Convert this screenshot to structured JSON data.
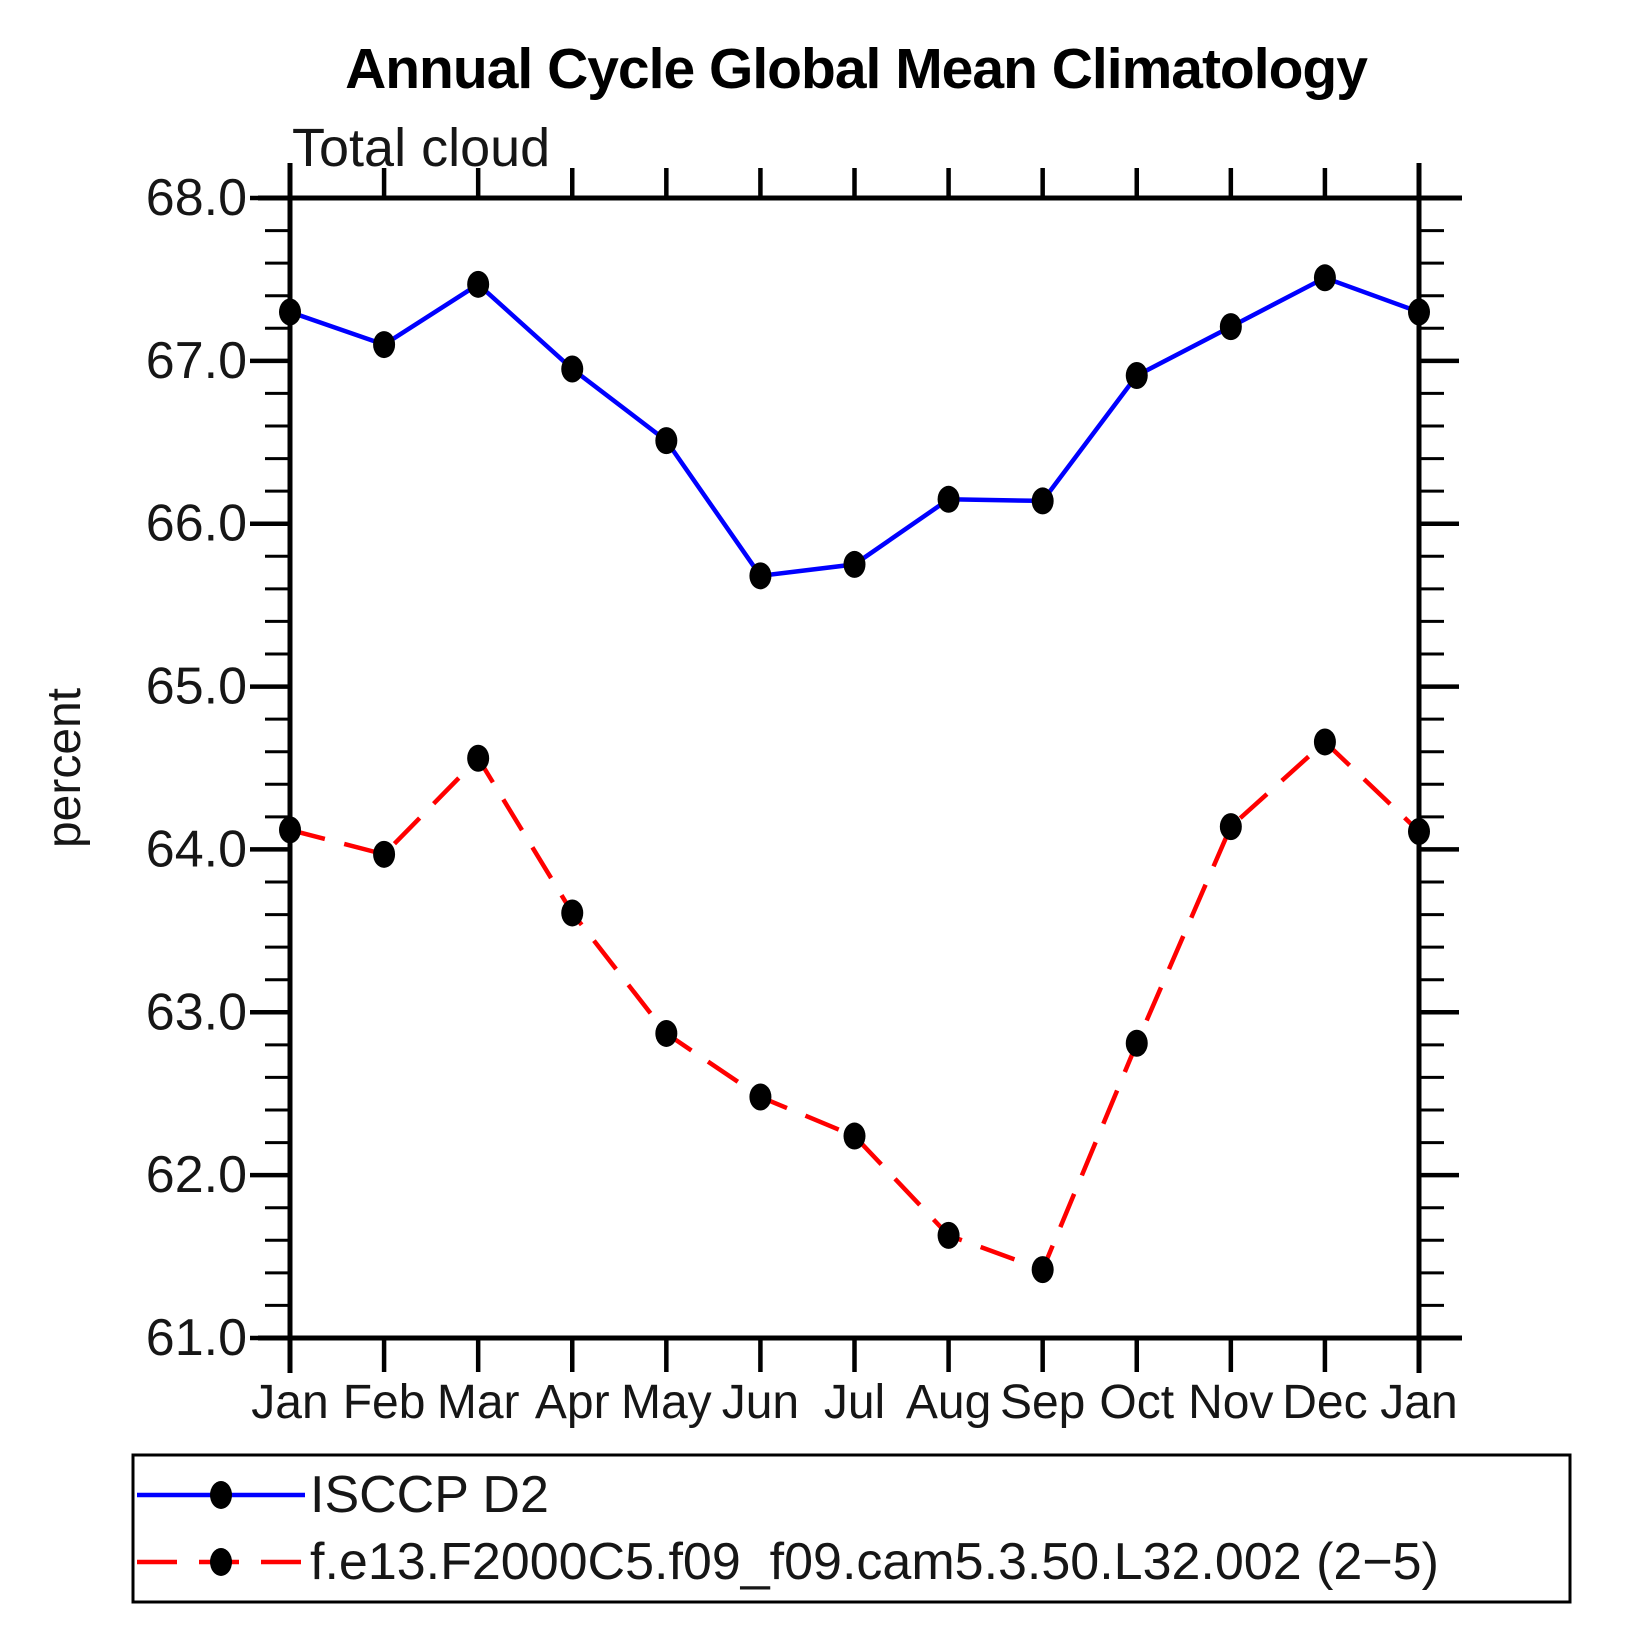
{
  "header": {
    "title": "Annual Cycle Global Mean Climatology"
  },
  "chart_data": {
    "type": "line",
    "title": "Annual Cycle Global Mean Climatology",
    "subtitle": "Total cloud",
    "ylabel": "percent",
    "xlabel": "",
    "categories": [
      "Jan",
      "Feb",
      "Mar",
      "Apr",
      "May",
      "Jun",
      "Jul",
      "Aug",
      "Sep",
      "Oct",
      "Nov",
      "Dec",
      "Jan"
    ],
    "series": [
      {
        "name": "ISCCP D2",
        "color": "#0000ff",
        "line_style": "solid",
        "marker": "black-dot",
        "values": [
          67.3,
          67.1,
          67.47,
          66.95,
          66.51,
          65.68,
          65.75,
          66.15,
          66.14,
          66.91,
          67.21,
          67.51,
          67.3
        ]
      },
      {
        "name": "f.e13.F2000C5.f09_f09.cam5.3.50.L32.002 (2−5)",
        "color": "#ff0000",
        "line_style": "dashed",
        "marker": "black-dot",
        "values": [
          64.12,
          63.97,
          64.56,
          63.61,
          62.87,
          62.48,
          62.24,
          61.63,
          61.42,
          62.81,
          64.14,
          64.66,
          64.11
        ]
      }
    ],
    "ylim": [
      61.0,
      68.0
    ],
    "yticks_major": [
      61,
      62,
      63,
      64,
      65,
      66,
      67,
      68
    ],
    "ytick_labels": [
      "61.0",
      "62.0",
      "63.0",
      "64.0",
      "65.0",
      "66.0",
      "67.0",
      "68.0"
    ],
    "y_minor_step": 0.2,
    "grid": false,
    "legend_position": "bottom",
    "marker_color": "#000000"
  }
}
